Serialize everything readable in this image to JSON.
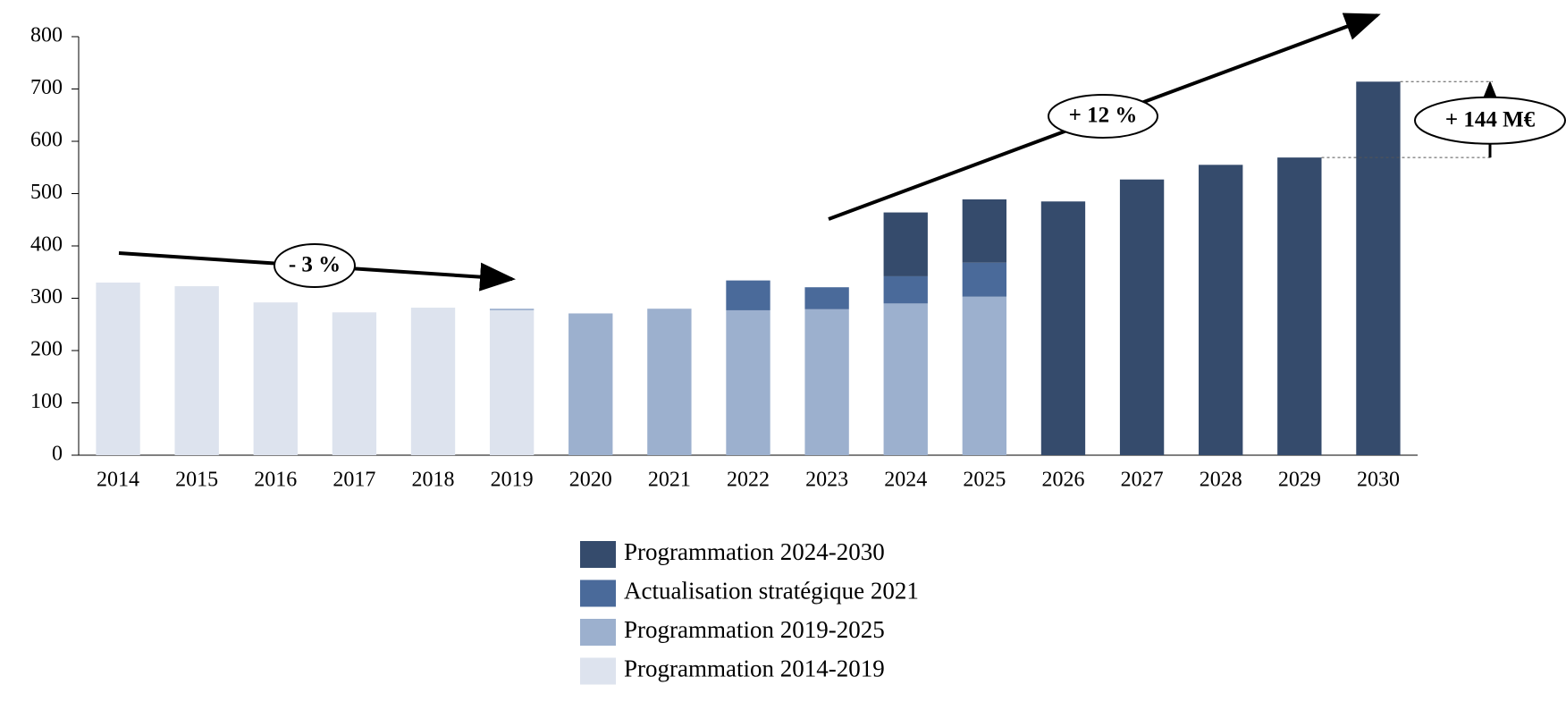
{
  "chart_data": {
    "type": "stacked_bar",
    "categories": [
      "2014",
      "2015",
      "2016",
      "2017",
      "2018",
      "2019",
      "2020",
      "2021",
      "2022",
      "2023",
      "2024",
      "2025",
      "2026",
      "2027",
      "2028",
      "2029",
      "2030"
    ],
    "series": [
      {
        "name": "Programmation 2014-2019",
        "color": "#dde3ee",
        "values": [
          330,
          323,
          292,
          273,
          282,
          277,
          null,
          null,
          null,
          null,
          null,
          null,
          null,
          null,
          null,
          null,
          null
        ]
      },
      {
        "name": "Programmation 2019-2025",
        "color": "#9cb0ce",
        "values": [
          null,
          null,
          null,
          null,
          null,
          3,
          271,
          280,
          277,
          279,
          290,
          303,
          null,
          null,
          null,
          null,
          null
        ]
      },
      {
        "name": "Actualisation stratégique 2021",
        "color": "#4a6a9a",
        "values": [
          null,
          null,
          null,
          null,
          null,
          null,
          null,
          null,
          57,
          42,
          52,
          65,
          null,
          null,
          null,
          null,
          null
        ]
      },
      {
        "name": "Programmation 2024-2030",
        "color": "#354b6c",
        "values": [
          null,
          null,
          null,
          null,
          null,
          null,
          null,
          null,
          null,
          null,
          122,
          121,
          485,
          527,
          555,
          569,
          714
        ]
      }
    ],
    "ylim": [
      0,
      800
    ],
    "yticks": [
      0,
      100,
      200,
      300,
      400,
      500,
      600,
      700,
      800
    ],
    "annotations": [
      "- 3 %",
      "+ 12 %",
      "+ 144 M€"
    ]
  }
}
